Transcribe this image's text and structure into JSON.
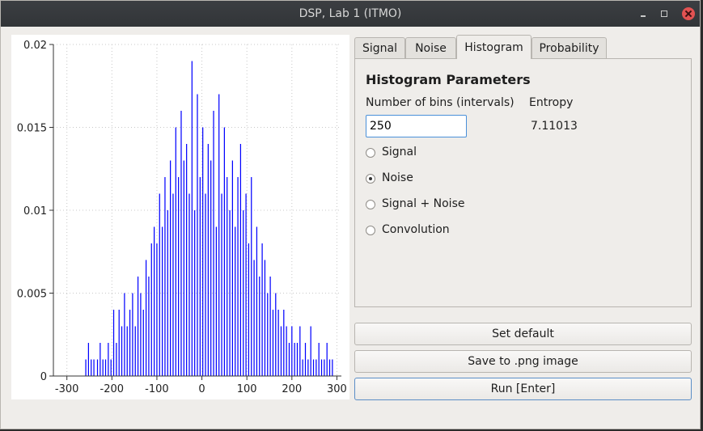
{
  "window": {
    "title": "DSP, Lab 1 (ITMO)"
  },
  "tabs": [
    {
      "label": "Signal",
      "active": false
    },
    {
      "label": "Noise",
      "active": false
    },
    {
      "label": "Histogram",
      "active": true
    },
    {
      "label": "Probability",
      "active": false
    }
  ],
  "histogram_panel": {
    "title": "Histogram Parameters",
    "bins_label": "Number of bins (intervals)",
    "bins_value": "250",
    "entropy_label": "Entropy",
    "entropy_value": "7.11013",
    "radio_options": [
      {
        "label": "Signal",
        "selected": false
      },
      {
        "label": "Noise",
        "selected": true
      },
      {
        "label": "Signal + Noise",
        "selected": false
      },
      {
        "label": "Convolution",
        "selected": false
      }
    ]
  },
  "buttons": {
    "set_default": "Set default",
    "save_png": "Save to .png image",
    "run": "Run [Enter]"
  },
  "chart_data": {
    "type": "bar",
    "xlim": [
      -330,
      310
    ],
    "ylim": [
      0,
      0.02
    ],
    "x_ticks": [
      "-300",
      "-200",
      "-100",
      "0",
      "100",
      "200",
      "300"
    ],
    "y_ticks": [
      "0",
      "0.005",
      "0.01",
      "0.015",
      "0.02"
    ],
    "grid": true,
    "bar_color": "#0000ff",
    "bin_width": 2.2,
    "x": [
      -258,
      -252,
      -246,
      -240,
      -232,
      -226,
      -220,
      -214,
      -208,
      -202,
      -196,
      -190,
      -184,
      -178,
      -172,
      -166,
      -160,
      -154,
      -148,
      -142,
      -136,
      -130,
      -124,
      -118,
      -112,
      -106,
      -100,
      -94,
      -88,
      -82,
      -76,
      -70,
      -64,
      -58,
      -52,
      -46,
      -40,
      -34,
      -28,
      -22,
      -16,
      -10,
      -4,
      2,
      8,
      14,
      20,
      26,
      32,
      38,
      44,
      50,
      56,
      62,
      68,
      74,
      80,
      86,
      92,
      98,
      104,
      110,
      116,
      122,
      128,
      134,
      140,
      146,
      152,
      158,
      164,
      170,
      176,
      182,
      188,
      194,
      200,
      206,
      212,
      218,
      224,
      230,
      236,
      242,
      248,
      254,
      260,
      266,
      272,
      278,
      284,
      290
    ],
    "values": [
      0.001,
      0.002,
      0.001,
      0.001,
      0.001,
      0.002,
      0.001,
      0.001,
      0.002,
      0.001,
      0.004,
      0.002,
      0.004,
      0.003,
      0.005,
      0.003,
      0.004,
      0.005,
      0.003,
      0.006,
      0.005,
      0.004,
      0.007,
      0.006,
      0.008,
      0.009,
      0.008,
      0.011,
      0.009,
      0.012,
      0.01,
      0.013,
      0.011,
      0.015,
      0.012,
      0.016,
      0.013,
      0.014,
      0.011,
      0.019,
      0.01,
      0.017,
      0.012,
      0.015,
      0.011,
      0.014,
      0.013,
      0.016,
      0.009,
      0.017,
      0.011,
      0.015,
      0.012,
      0.01,
      0.013,
      0.009,
      0.012,
      0.014,
      0.01,
      0.011,
      0.008,
      0.012,
      0.007,
      0.009,
      0.006,
      0.008,
      0.007,
      0.005,
      0.006,
      0.004,
      0.005,
      0.004,
      0.003,
      0.004,
      0.003,
      0.002,
      0.003,
      0.002,
      0.002,
      0.003,
      0.001,
      0.002,
      0.001,
      0.003,
      0.001,
      0.001,
      0.002,
      0.001,
      0.001,
      0.002,
      0.001,
      0.001
    ]
  }
}
